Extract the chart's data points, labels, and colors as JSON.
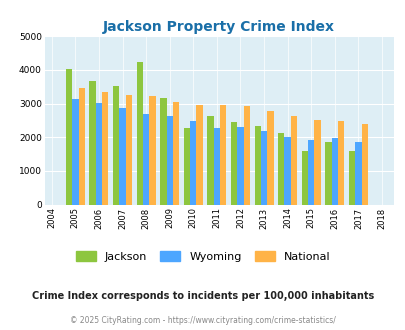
{
  "title": "Jackson Property Crime Index",
  "years": [
    2004,
    2005,
    2006,
    2007,
    2008,
    2009,
    2010,
    2011,
    2012,
    2013,
    2014,
    2015,
    2016,
    2017,
    2018
  ],
  "jackson": [
    null,
    4020,
    3680,
    3510,
    4250,
    3170,
    2290,
    2640,
    2440,
    2340,
    2130,
    1590,
    1860,
    1600,
    null
  ],
  "wyoming": [
    null,
    3150,
    3010,
    2870,
    2680,
    2640,
    2490,
    2270,
    2300,
    2200,
    2000,
    1930,
    1980,
    1860,
    null
  ],
  "national": [
    null,
    3460,
    3360,
    3260,
    3230,
    3060,
    2960,
    2950,
    2940,
    2770,
    2630,
    2500,
    2470,
    2380,
    null
  ],
  "colors": {
    "jackson": "#8dc63f",
    "wyoming": "#4da6ff",
    "national": "#ffb347"
  },
  "ylim": [
    0,
    5000
  ],
  "yticks": [
    0,
    1000,
    2000,
    3000,
    4000,
    5000
  ],
  "background_color": "#deeef5",
  "title_color": "#1a6fa8",
  "title_fontsize": 10,
  "legend_fontsize": 8,
  "footer_note": "Crime Index corresponds to incidents per 100,000 inhabitants",
  "copyright": "© 2025 CityRating.com - https://www.cityrating.com/crime-statistics/",
  "footer_color": "#222222",
  "copyright_color": "#888888"
}
